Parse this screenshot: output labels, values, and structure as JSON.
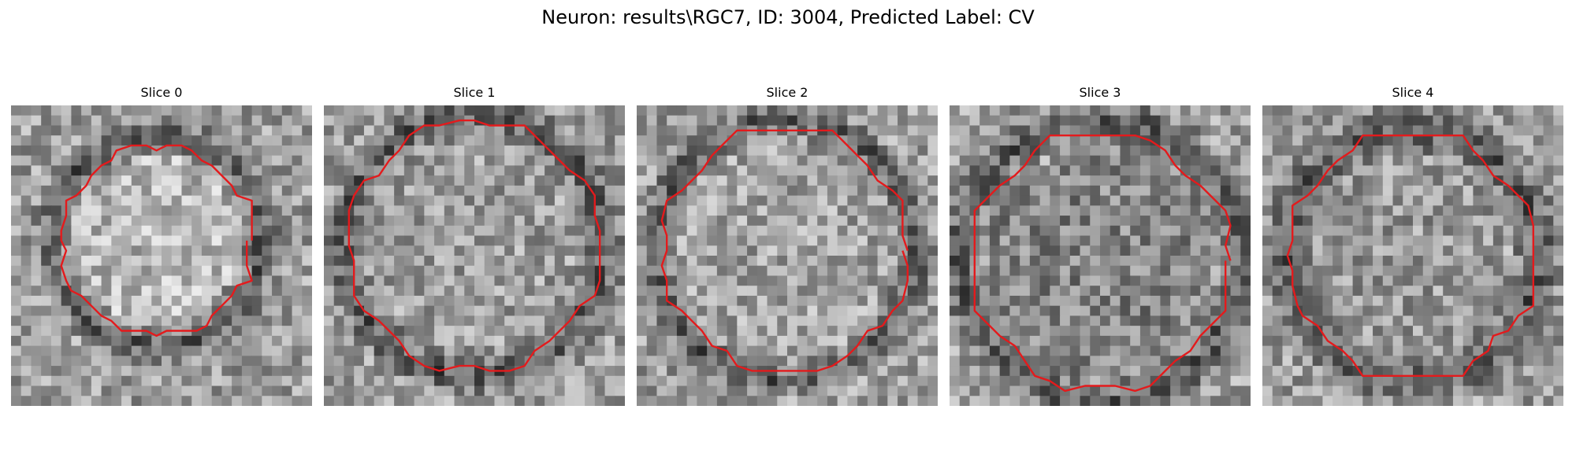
{
  "figure": {
    "title": "Neuron: results\\RGC7, ID: 3004, Predicted Label: CV"
  },
  "slices": [
    {
      "title": "Slice 0"
    },
    {
      "title": "Slice 1"
    },
    {
      "title": "Slice 2"
    },
    {
      "title": "Slice 3"
    },
    {
      "title": "Slice 4"
    }
  ],
  "colors": {
    "background": "#ffffff",
    "contour": "#e41a1c",
    "colormap": "gray"
  }
}
